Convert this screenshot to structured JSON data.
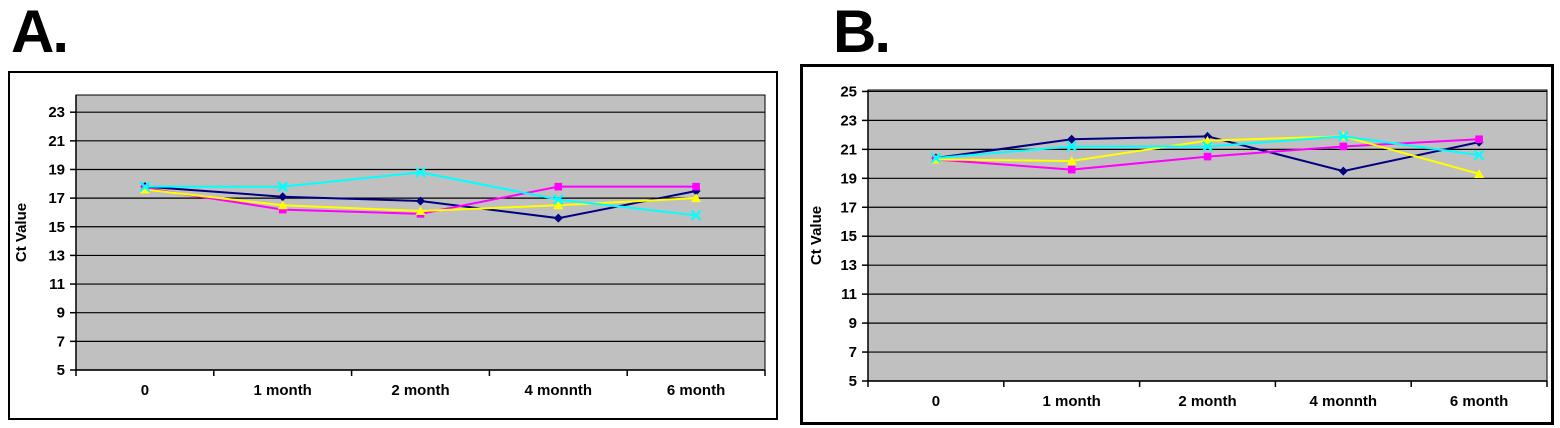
{
  "figure": {
    "panel_labels": [
      "A.",
      "B."
    ],
    "background": "#FFFFFF"
  },
  "chart_data": [
    {
      "id": "A",
      "type": "line",
      "title": "",
      "xlabel": "",
      "ylabel": "Ct Value",
      "categories": [
        "0",
        "1 month",
        "2 month",
        "4 monnth",
        "6 month"
      ],
      "yticks": [
        5,
        7,
        9,
        11,
        13,
        15,
        17,
        19,
        21,
        23
      ],
      "ylim": [
        5,
        24.2
      ],
      "grid": "horizontal",
      "legend_position": "none",
      "plot_bg": "#C0C0C0",
      "gridline_color": "#000000",
      "axis_color": "#000000",
      "series": [
        {
          "name": "navy-diamond",
          "color": "#000080",
          "marker": "diamond",
          "values": [
            17.8,
            17.1,
            16.8,
            15.6,
            17.5
          ]
        },
        {
          "name": "magenta-square",
          "color": "#FF00FF",
          "marker": "square",
          "values": [
            17.7,
            16.2,
            15.9,
            17.8,
            17.8
          ]
        },
        {
          "name": "yellow-triangle",
          "color": "#FFFF00",
          "marker": "triangle",
          "values": [
            17.6,
            16.5,
            16.1,
            16.5,
            17.0
          ]
        },
        {
          "name": "cyan-x",
          "color": "#00FFFF",
          "marker": "x",
          "values": [
            17.8,
            17.8,
            18.8,
            16.9,
            15.8
          ]
        }
      ]
    },
    {
      "id": "B",
      "type": "line",
      "title": "",
      "xlabel": "",
      "ylabel": "Ct Value",
      "categories": [
        "0",
        "1 month",
        "2 month",
        "4 monnth",
        "6 month"
      ],
      "yticks": [
        5,
        7,
        9,
        11,
        13,
        15,
        17,
        19,
        21,
        23,
        25
      ],
      "ylim": [
        5,
        25.1
      ],
      "grid": "horizontal",
      "legend_position": "none",
      "plot_bg": "#C0C0C0",
      "gridline_color": "#000000",
      "axis_color": "#000000",
      "series": [
        {
          "name": "navy-diamond",
          "color": "#000080",
          "marker": "diamond",
          "values": [
            20.4,
            21.7,
            21.9,
            19.5,
            21.5
          ]
        },
        {
          "name": "magenta-square",
          "color": "#FF00FF",
          "marker": "square",
          "values": [
            20.3,
            19.6,
            20.5,
            21.2,
            21.7
          ]
        },
        {
          "name": "yellow-triangle",
          "color": "#FFFF00",
          "marker": "triangle",
          "values": [
            20.3,
            20.2,
            21.6,
            21.9,
            19.3
          ]
        },
        {
          "name": "cyan-x",
          "color": "#00FFFF",
          "marker": "x",
          "values": [
            20.4,
            21.2,
            21.2,
            21.9,
            20.6
          ]
        }
      ]
    }
  ]
}
